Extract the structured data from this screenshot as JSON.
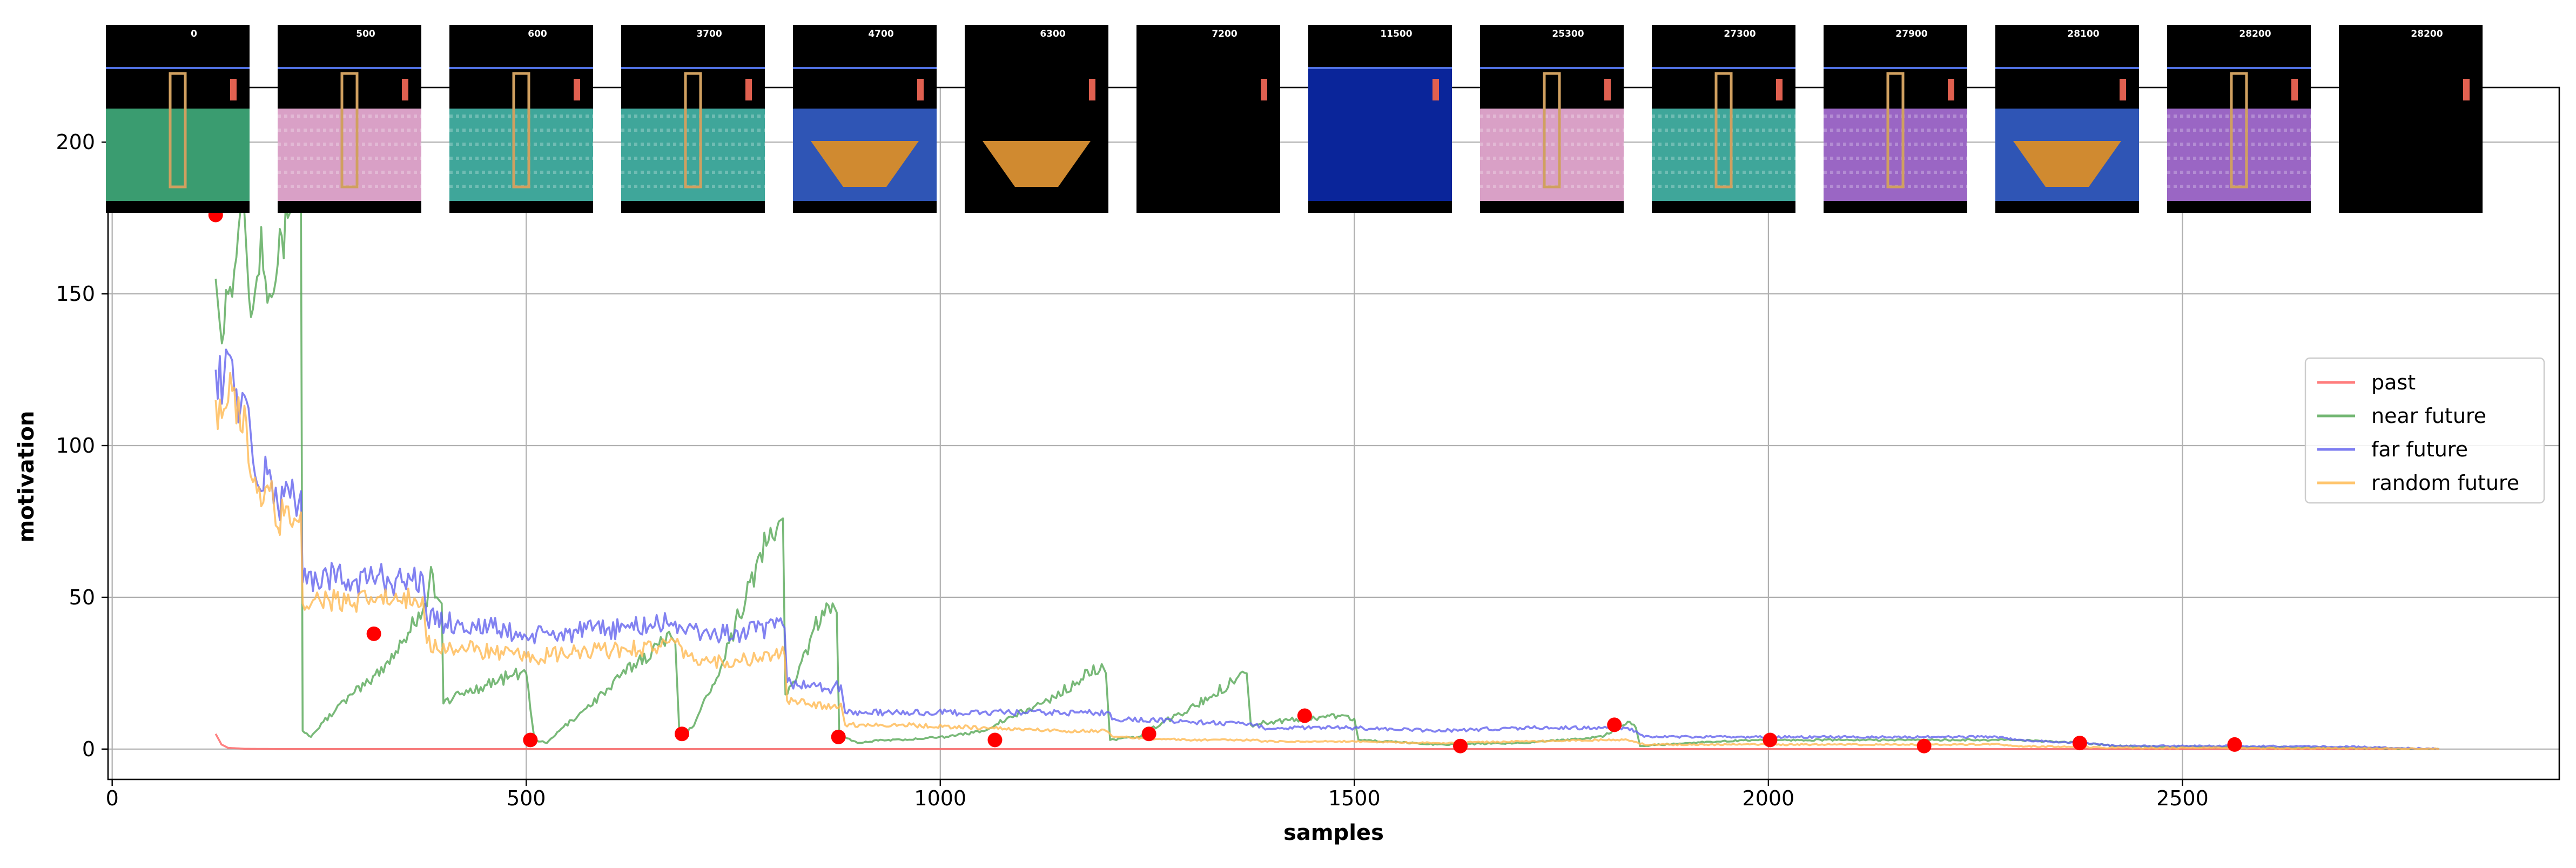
{
  "chart_data": {
    "type": "line",
    "xlabel": "samples",
    "ylabel": "motivation",
    "xlim": [
      -5,
      2955
    ],
    "ylim": [
      -10,
      218
    ],
    "x_ticks": [
      0,
      500,
      1000,
      1500,
      2000,
      2500
    ],
    "y_ticks": [
      0,
      50,
      100,
      150,
      200
    ],
    "grid": true,
    "legend_position": "right-center",
    "series": [
      {
        "name": "past",
        "color": "#ff6666",
        "points": [
          [
            125,
            5
          ],
          [
            132,
            1.5
          ],
          [
            140,
            0.4
          ],
          [
            160,
            0.1
          ],
          [
            200,
            0
          ],
          [
            2810,
            0
          ]
        ]
      },
      {
        "name": "near future",
        "color": "#5aaa5a",
        "points": [
          [
            125,
            155
          ],
          [
            130,
            140
          ],
          [
            140,
            150
          ],
          [
            150,
            162
          ],
          [
            158,
            185
          ],
          [
            163,
            160
          ],
          [
            170,
            145
          ],
          [
            180,
            172
          ],
          [
            190,
            150
          ],
          [
            200,
            160
          ],
          [
            212,
            175
          ],
          [
            220,
            185
          ],
          [
            228,
            180
          ],
          [
            230,
            6
          ],
          [
            240,
            4
          ],
          [
            255,
            9
          ],
          [
            270,
            13
          ],
          [
            290,
            18
          ],
          [
            310,
            22
          ],
          [
            330,
            28
          ],
          [
            350,
            35
          ],
          [
            370,
            45
          ],
          [
            380,
            47
          ],
          [
            385,
            60
          ],
          [
            392,
            50
          ],
          [
            398,
            48
          ],
          [
            400,
            15
          ],
          [
            420,
            18
          ],
          [
            450,
            21
          ],
          [
            480,
            24
          ],
          [
            500,
            25
          ],
          [
            510,
            3
          ],
          [
            525,
            2
          ],
          [
            540,
            6
          ],
          [
            570,
            13
          ],
          [
            600,
            20
          ],
          [
            630,
            28
          ],
          [
            660,
            34
          ],
          [
            675,
            37
          ],
          [
            680,
            35
          ],
          [
            685,
            5
          ],
          [
            700,
            7
          ],
          [
            720,
            18
          ],
          [
            745,
            35
          ],
          [
            770,
            55
          ],
          [
            790,
            67
          ],
          [
            805,
            75
          ],
          [
            810,
            76
          ],
          [
            813,
            18
          ],
          [
            825,
            22
          ],
          [
            845,
            38
          ],
          [
            860,
            44
          ],
          [
            870,
            48
          ],
          [
            875,
            45
          ],
          [
            878,
            5
          ],
          [
            900,
            2
          ],
          [
            930,
            3
          ],
          [
            960,
            3
          ],
          [
            990,
            4
          ],
          [
            1010,
            4
          ],
          [
            1050,
            6
          ],
          [
            1090,
            11
          ],
          [
            1130,
            16
          ],
          [
            1170,
            23
          ],
          [
            1195,
            28
          ],
          [
            1200,
            25
          ],
          [
            1205,
            3
          ],
          [
            1240,
            4
          ],
          [
            1270,
            9
          ],
          [
            1300,
            13
          ],
          [
            1330,
            18
          ],
          [
            1360,
            24
          ],
          [
            1370,
            25
          ],
          [
            1375,
            8
          ],
          [
            1400,
            9
          ],
          [
            1440,
            10
          ],
          [
            1480,
            11
          ],
          [
            1500,
            10
          ],
          [
            1505,
            3
          ],
          [
            1600,
            1.5
          ],
          [
            1700,
            2
          ],
          [
            1800,
            4
          ],
          [
            1830,
            9
          ],
          [
            1840,
            7
          ],
          [
            1845,
            1
          ],
          [
            1900,
            2
          ],
          [
            1980,
            3
          ],
          [
            2000,
            3
          ],
          [
            2100,
            3
          ],
          [
            2200,
            3
          ],
          [
            2300,
            3
          ],
          [
            2380,
            2
          ],
          [
            2420,
            1
          ],
          [
            2500,
            0.8
          ],
          [
            2600,
            0.6
          ],
          [
            2700,
            0.4
          ],
          [
            2810,
            0
          ]
        ]
      },
      {
        "name": "far future",
        "color": "#6666ee",
        "points": [
          [
            125,
            125
          ],
          [
            135,
            122
          ],
          [
            145,
            128
          ],
          [
            155,
            112
          ],
          [
            162,
            115
          ],
          [
            170,
            95
          ],
          [
            180,
            85
          ],
          [
            190,
            92
          ],
          [
            200,
            80
          ],
          [
            210,
            88
          ],
          [
            220,
            83
          ],
          [
            228,
            85
          ],
          [
            230,
            55
          ],
          [
            260,
            57
          ],
          [
            290,
            55
          ],
          [
            320,
            57
          ],
          [
            350,
            55
          ],
          [
            375,
            57
          ],
          [
            380,
            43
          ],
          [
            420,
            41
          ],
          [
            460,
            40
          ],
          [
            500,
            37
          ],
          [
            540,
            38
          ],
          [
            580,
            39
          ],
          [
            620,
            40
          ],
          [
            660,
            41
          ],
          [
            680,
            42
          ],
          [
            690,
            39
          ],
          [
            720,
            38
          ],
          [
            760,
            38
          ],
          [
            800,
            40
          ],
          [
            812,
            40
          ],
          [
            815,
            22
          ],
          [
            840,
            21
          ],
          [
            870,
            20
          ],
          [
            880,
            21
          ],
          [
            885,
            12
          ],
          [
            950,
            12
          ],
          [
            1050,
            12
          ],
          [
            1150,
            12
          ],
          [
            1200,
            12
          ],
          [
            1210,
            10
          ],
          [
            1300,
            9
          ],
          [
            1380,
            8
          ],
          [
            1390,
            7
          ],
          [
            1500,
            7
          ],
          [
            1600,
            6
          ],
          [
            1700,
            7
          ],
          [
            1800,
            7
          ],
          [
            1830,
            7
          ],
          [
            1850,
            4
          ],
          [
            1950,
            4
          ],
          [
            2100,
            4
          ],
          [
            2200,
            4
          ],
          [
            2280,
            4
          ],
          [
            2300,
            3
          ],
          [
            2380,
            2
          ],
          [
            2420,
            1
          ],
          [
            2550,
            1
          ],
          [
            2700,
            0.8
          ],
          [
            2810,
            0
          ]
        ]
      },
      {
        "name": "random future",
        "color": "#ffbb55",
        "points": [
          [
            125,
            115
          ],
          [
            135,
            112
          ],
          [
            145,
            118
          ],
          [
            155,
            105
          ],
          [
            162,
            108
          ],
          [
            170,
            88
          ],
          [
            180,
            80
          ],
          [
            190,
            85
          ],
          [
            200,
            73
          ],
          [
            210,
            80
          ],
          [
            220,
            76
          ],
          [
            228,
            78
          ],
          [
            230,
            48
          ],
          [
            260,
            50
          ],
          [
            290,
            47
          ],
          [
            320,
            50
          ],
          [
            350,
            48
          ],
          [
            375,
            50
          ],
          [
            380,
            35
          ],
          [
            420,
            33
          ],
          [
            460,
            32
          ],
          [
            500,
            30
          ],
          [
            540,
            31
          ],
          [
            580,
            32
          ],
          [
            620,
            33
          ],
          [
            660,
            34
          ],
          [
            680,
            35
          ],
          [
            690,
            30
          ],
          [
            720,
            29
          ],
          [
            760,
            29
          ],
          [
            800,
            31
          ],
          [
            812,
            31
          ],
          [
            815,
            16
          ],
          [
            840,
            15
          ],
          [
            870,
            14
          ],
          [
            880,
            15
          ],
          [
            885,
            8
          ],
          [
            950,
            8
          ],
          [
            1050,
            7
          ],
          [
            1150,
            6
          ],
          [
            1200,
            6
          ],
          [
            1210,
            4
          ],
          [
            1300,
            3
          ],
          [
            1380,
            3
          ],
          [
            1390,
            2.5
          ],
          [
            1500,
            2.5
          ],
          [
            1600,
            2
          ],
          [
            1700,
            2.5
          ],
          [
            1800,
            3
          ],
          [
            1830,
            3
          ],
          [
            1850,
            1.5
          ],
          [
            1950,
            1.5
          ],
          [
            2100,
            1.5
          ],
          [
            2200,
            1.5
          ],
          [
            2280,
            1.5
          ],
          [
            2300,
            1
          ],
          [
            2380,
            0.6
          ],
          [
            2420,
            0.4
          ],
          [
            2550,
            0.3
          ],
          [
            2700,
            0.2
          ],
          [
            2810,
            0
          ]
        ]
      }
    ],
    "markers": [
      [
        125,
        176
      ],
      [
        316,
        38
      ],
      [
        505,
        3
      ],
      [
        688,
        5
      ],
      [
        877,
        4
      ],
      [
        1066,
        3
      ],
      [
        1252,
        5
      ],
      [
        1440,
        11
      ],
      [
        1628,
        1
      ],
      [
        1814,
        8
      ],
      [
        2002,
        3
      ],
      [
        2188,
        1
      ],
      [
        2376,
        2
      ],
      [
        2563,
        1.5
      ]
    ],
    "marker_color": "#ff0000",
    "thumbnails": [
      {
        "score": "0",
        "scene": "green-ladders"
      },
      {
        "score": "500",
        "scene": "pink-checker"
      },
      {
        "score": "600",
        "scene": "teal-checker"
      },
      {
        "score": "3700",
        "scene": "teal-checker"
      },
      {
        "score": "4700",
        "scene": "blue-bowl"
      },
      {
        "score": "6300",
        "scene": "black-bowl"
      },
      {
        "score": "7200",
        "scene": "black"
      },
      {
        "score": "11500",
        "scene": "blue"
      },
      {
        "score": "25300",
        "scene": "pink-checker"
      },
      {
        "score": "27300",
        "scene": "teal-checker"
      },
      {
        "score": "27900",
        "scene": "purple-checker"
      },
      {
        "score": "28100",
        "scene": "blue-bowl"
      },
      {
        "score": "28200",
        "scene": "purple-checker"
      },
      {
        "score": "28200",
        "scene": "black-figures"
      }
    ]
  }
}
